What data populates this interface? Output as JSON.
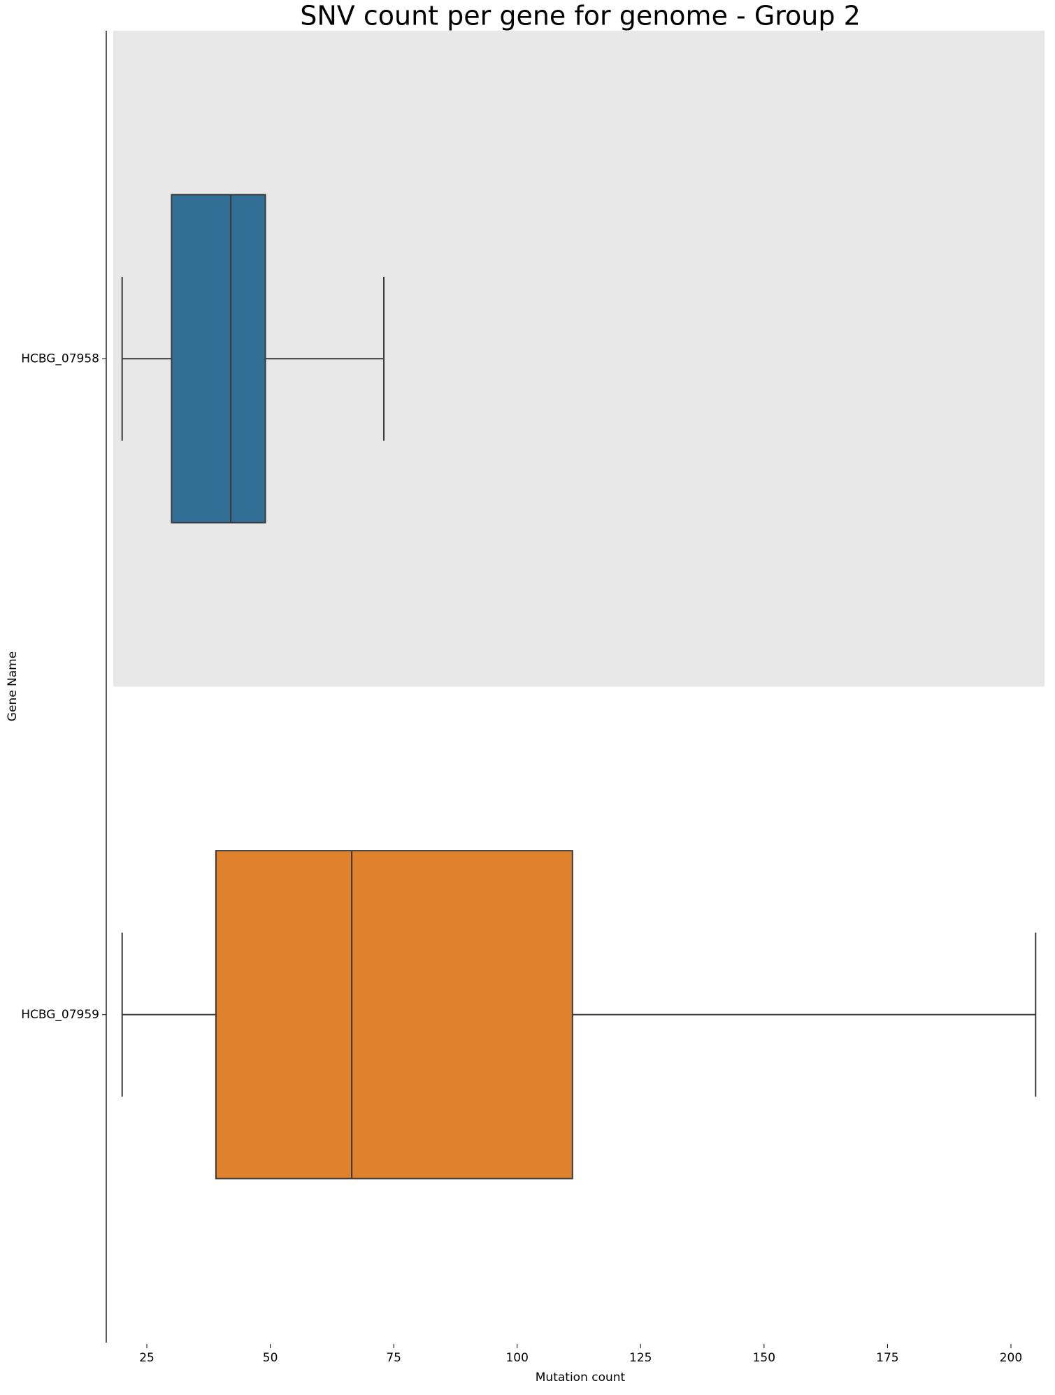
{
  "chart_data": {
    "type": "box",
    "title": "SNV count per gene for genome - Group 2",
    "xlabel": "Mutation count",
    "ylabel": "Gene Name",
    "categories": [
      "HCBG_07958",
      "HCBG_07959"
    ],
    "boxes": [
      {
        "whislo": 20,
        "q1": 30,
        "med": 42,
        "q3": 49,
        "whishi": 73,
        "color": "#306e96"
      },
      {
        "whislo": 20,
        "q1": 39,
        "med": 66.5,
        "q3": 111.2,
        "whishi": 205,
        "color": "#e0812e"
      }
    ],
    "xlim": [
      18.2,
      206.8
    ],
    "xticks": [
      25,
      50,
      75,
      100,
      125,
      150,
      175,
      200
    ],
    "highlight_index": 0,
    "highlight_color": "#e8e8e8"
  }
}
